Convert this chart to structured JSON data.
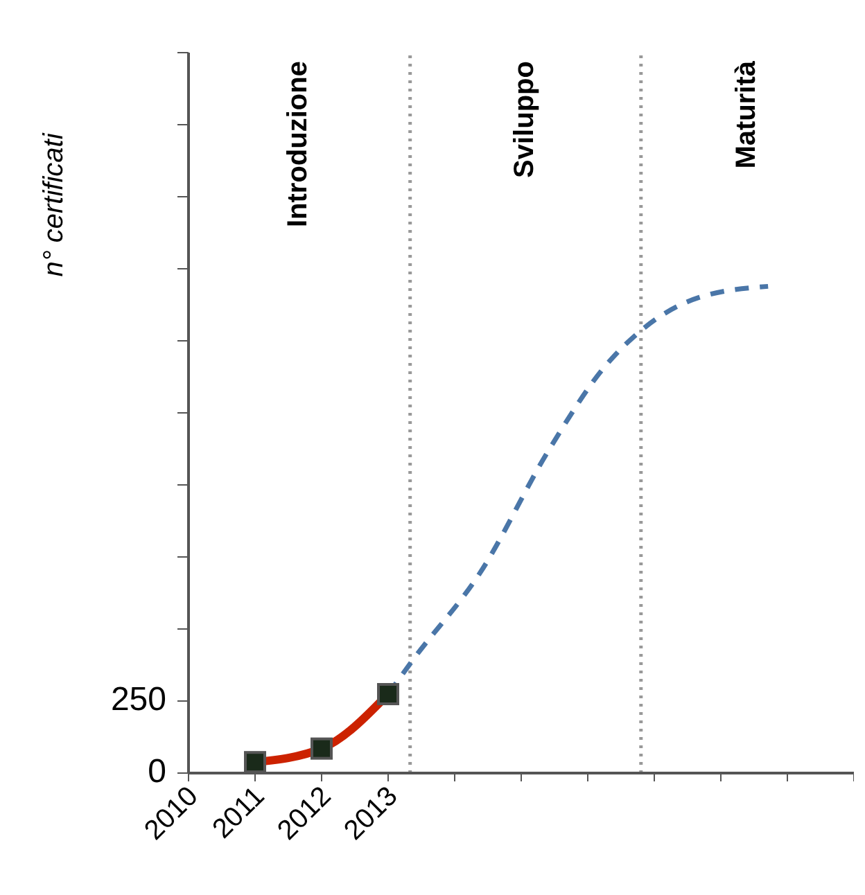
{
  "chart_data": {
    "type": "line",
    "ylabel": "n° certificati",
    "xlim": [
      2010,
      2020
    ],
    "xticks": [
      2010,
      2011,
      2012,
      2013,
      {
        "value": 2014,
        "label": null
      },
      {
        "value": 2015,
        "label": null
      },
      {
        "value": 2016,
        "label": null
      },
      {
        "value": 2017,
        "label": null
      },
      {
        "value": 2018,
        "label": null
      },
      {
        "value": 2019,
        "label": null
      },
      {
        "value": 2020,
        "label": null
      }
    ],
    "ylim": [
      0,
      2500
    ],
    "yticks": [
      0,
      250,
      {
        "value": 500,
        "label": null
      },
      {
        "value": 750,
        "label": null
      },
      {
        "value": 1000,
        "label": null
      },
      {
        "value": 1250,
        "label": null
      },
      {
        "value": 1500,
        "label": null
      },
      {
        "value": 1750,
        "label": null
      },
      {
        "value": 2000,
        "label": null
      },
      {
        "value": 2250,
        "label": null
      },
      {
        "value": 2500,
        "label": null
      }
    ],
    "series": [
      {
        "color": "#4a76a8",
        "line_style": "dashed",
        "marker": "none",
        "x": [
          2013,
          2013.37,
          2014.39,
          2015.42,
          2016.24,
          2016.86,
          2017.68,
          2018.71
        ],
        "values": [
          274,
          392,
          698,
          1123,
          1406,
          1547,
          1651,
          1689
        ]
      },
      {
        "color": "#cc2200",
        "line_style": "solid",
        "marker": "square",
        "x": [
          2011,
          2012,
          2013
        ],
        "values": [
          38,
          85,
          274
        ]
      }
    ],
    "ref_lines": [
      {
        "axis": "x",
        "value": 2013.33,
        "color": "#999999",
        "line_style": "dotted"
      },
      {
        "axis": "x",
        "value": 2016.8,
        "color": "#999999",
        "line_style": "dotted"
      }
    ],
    "annotations": [
      "Introduzione",
      "Sviluppo",
      "Maturità"
    ]
  }
}
